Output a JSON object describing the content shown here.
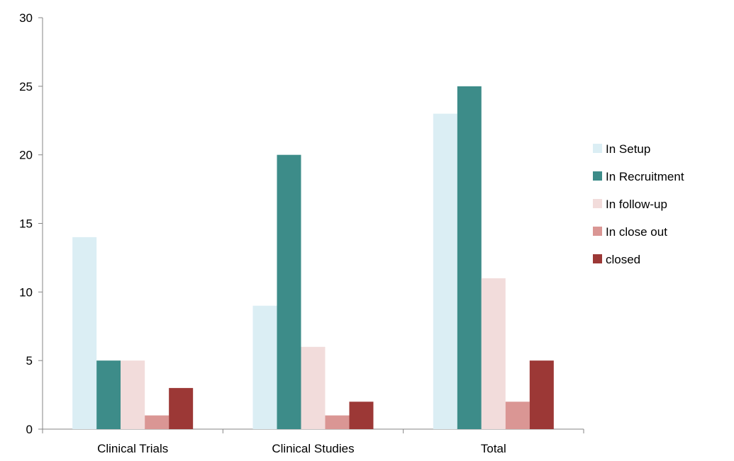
{
  "chart_data": {
    "type": "bar",
    "categories": [
      "Clinical Trials",
      "Clinical Studies",
      "Total"
    ],
    "series": [
      {
        "name": "In Setup",
        "values": [
          14,
          9,
          23
        ],
        "color": "#dbeef4"
      },
      {
        "name": "In Recruitment",
        "values": [
          5,
          20,
          25
        ],
        "color": "#3d8c89"
      },
      {
        "name": "In follow-up",
        "values": [
          5,
          6,
          11
        ],
        "color": "#f2dcdb"
      },
      {
        "name": "In close out",
        "values": [
          1,
          1,
          2
        ],
        "color": "#da9694"
      },
      {
        "name": "closed",
        "values": [
          3,
          2,
          5
        ],
        "color": "#9c3836"
      }
    ],
    "ylim": [
      0,
      30
    ],
    "yticks": [
      0,
      5,
      10,
      15,
      20,
      25,
      30
    ],
    "legend_position": "right",
    "grid": false
  }
}
